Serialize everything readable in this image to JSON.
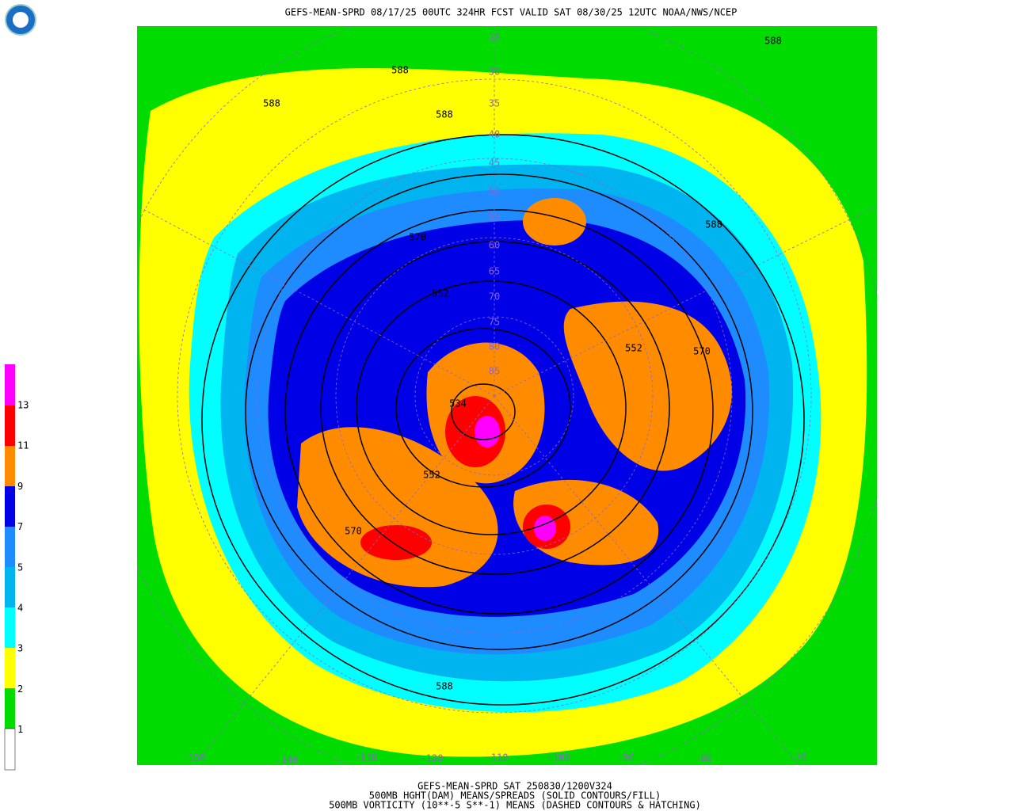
{
  "header": {
    "title": "GEFS-MEAN-SPRD 08/17/25 00UTC 324HR FCST VALID SAT 08/30/25 12UTC NOAA/NWS/NCEP"
  },
  "footer": {
    "lines": [
      "GEFS-MEAN-SPRD SAT 250830/1200V324",
      "500MB HGHT(DAM) MEANS/SPREADS (SOLID CONTOURS/FILL)",
      "500MB VORTICITY (10**-5 S**-1) MEANS (DASHED CONTOURS & HATCHING)"
    ]
  },
  "colorbar": {
    "labels": [
      "13",
      "11",
      "9",
      "7",
      "5",
      "4",
      "3",
      "2",
      "1"
    ]
  },
  "longitude_labels": [
    "-150",
    "-140",
    "-130",
    "-120",
    "-110",
    "-100",
    "-90",
    "-80",
    "-70"
  ],
  "latitude_labels": [
    "25",
    "30",
    "35",
    "40",
    "45",
    "50",
    "55",
    "60",
    "65",
    "70",
    "75",
    "80",
    "85"
  ],
  "contour_labels": [
    "588",
    "588",
    "588",
    "588",
    "588",
    "588",
    "570",
    "570",
    "570",
    "552",
    "552",
    "552",
    "534"
  ]
}
